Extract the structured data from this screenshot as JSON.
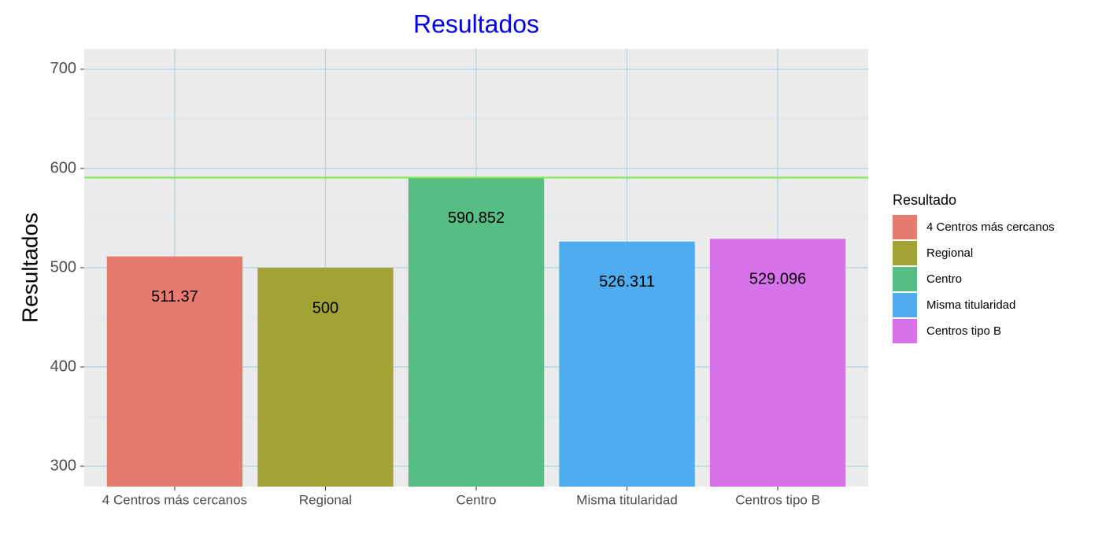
{
  "chart_data": {
    "type": "bar",
    "title": "Resultados",
    "y_label": "Resultados",
    "categories": [
      "4 Centros más cercanos",
      "Regional",
      "Centro",
      "Misma titularidad",
      "Centros tipo B"
    ],
    "values": [
      511.37,
      500,
      590.852,
      526.311,
      529.096
    ],
    "colors": [
      "#E67C70",
      "#A2A235",
      "#56BD84",
      "#4EACEF",
      "#D872EB"
    ],
    "ylim": [
      279.4,
      720.6
    ],
    "yticks": [
      300,
      400,
      500,
      600,
      700
    ],
    "grid": true,
    "hline": 590.852,
    "hline_color": "#7CEB4F",
    "legend": {
      "title": "Resultado",
      "position": "right"
    }
  }
}
